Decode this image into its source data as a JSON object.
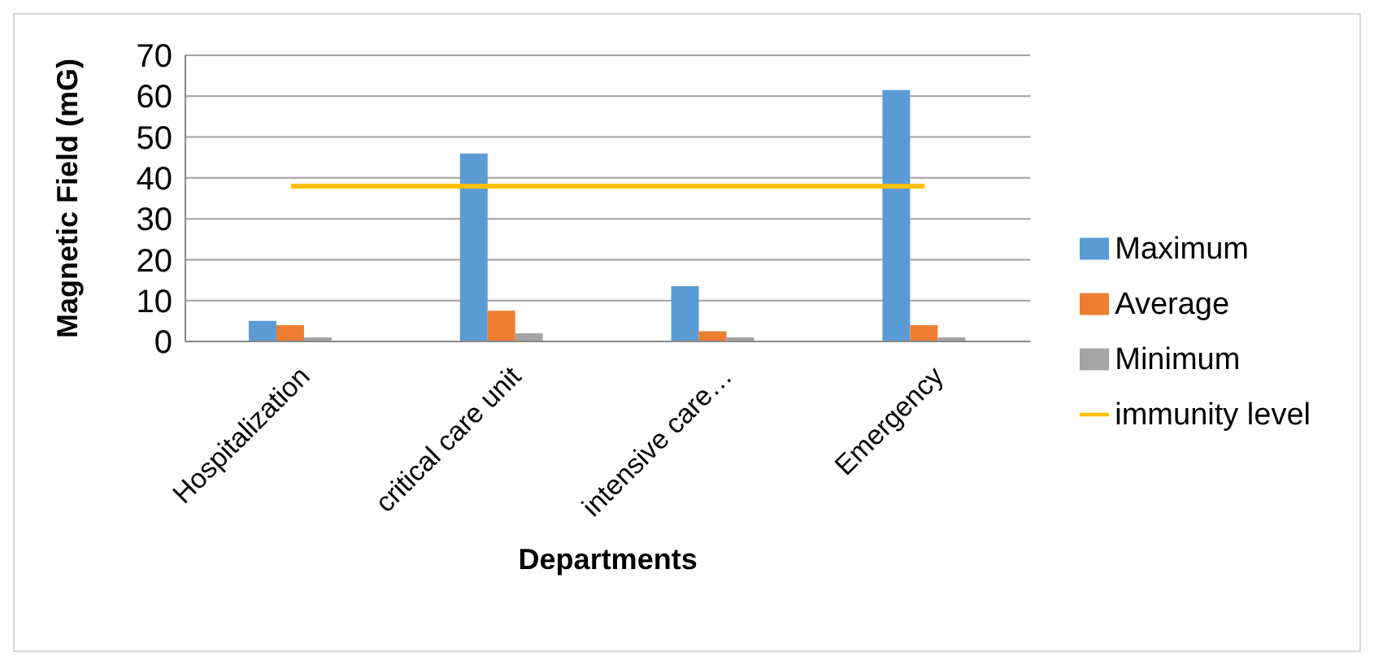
{
  "chart_data": {
    "type": "bar",
    "xlabel": "Departments",
    "ylabel": "Magnetic Field (mG)",
    "categories": [
      "Hospitalization",
      "critical care unit",
      "intensive care…",
      "Emergency"
    ],
    "series": [
      {
        "name": "Maximum",
        "color": "#5b9bd5",
        "values": [
          5,
          46,
          13.5,
          61.5
        ]
      },
      {
        "name": "Average",
        "color": "#ed7d31",
        "values": [
          4,
          7.5,
          2.5,
          4
        ]
      },
      {
        "name": "Minimum",
        "color": "#a5a5a5",
        "values": [
          1,
          2,
          1,
          1
        ]
      },
      {
        "name": "immunity level",
        "type": "line",
        "color": "#ffc000",
        "values": [
          38,
          38,
          38,
          38
        ]
      }
    ],
    "ylim": [
      0,
      70
    ],
    "yticks": [
      0,
      10,
      20,
      30,
      40,
      50,
      60,
      70
    ],
    "grid": "y",
    "legend": "right",
    "marker": "none"
  }
}
